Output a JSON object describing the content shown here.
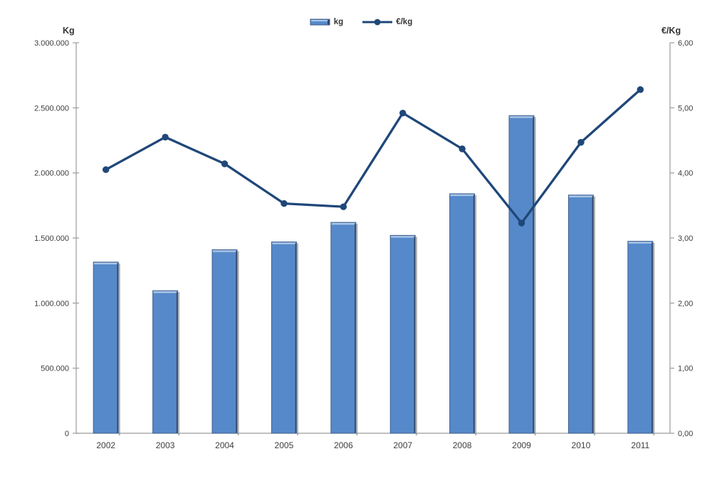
{
  "chart_data": {
    "type": "bar",
    "subtype": "combo-bar-line",
    "title": "",
    "categories": [
      "2002",
      "2003",
      "2004",
      "2005",
      "2006",
      "2007",
      "2008",
      "2009",
      "2010",
      "2011"
    ],
    "series": [
      {
        "name": "kg",
        "type": "bar",
        "axis": "left",
        "values": [
          1315000,
          1095000,
          1410000,
          1470000,
          1620000,
          1520000,
          1840000,
          2440000,
          1830000,
          1475000
        ]
      },
      {
        "name": "€/kg",
        "type": "line",
        "axis": "right",
        "values": [
          4.05,
          4.55,
          4.14,
          3.53,
          3.48,
          4.92,
          4.37,
          3.23,
          4.47,
          5.28
        ]
      }
    ],
    "left_axis": {
      "title": "Kg",
      "min": 0,
      "max": 3000000,
      "ticks": [
        {
          "v": 0,
          "label": "0"
        },
        {
          "v": 500000,
          "label": "500.000"
        },
        {
          "v": 1000000,
          "label": "1.000.000"
        },
        {
          "v": 1500000,
          "label": "1.500.000"
        },
        {
          "v": 2000000,
          "label": "2.000.000"
        },
        {
          "v": 2500000,
          "label": "2.500.000"
        },
        {
          "v": 3000000,
          "label": "3.000.000"
        }
      ]
    },
    "right_axis": {
      "title": "€/Kg",
      "min": 0,
      "max": 6,
      "ticks": [
        {
          "v": 0,
          "label": "0,00"
        },
        {
          "v": 1,
          "label": "1,00"
        },
        {
          "v": 2,
          "label": "2,00"
        },
        {
          "v": 3,
          "label": "3,00"
        },
        {
          "v": 4,
          "label": "4,00"
        },
        {
          "v": 5,
          "label": "5,00"
        },
        {
          "v": 6,
          "label": "6,00"
        }
      ]
    },
    "legend_position": "top-center",
    "grid": false,
    "colors": {
      "bar_fill": "#5689c9",
      "bar_top_highlight": "#acc7e8",
      "bar_border": "#41618f",
      "bar_edge_dark": "#2f4566",
      "bar_shadow": "#8f8f8f",
      "line": "#1f4779",
      "axis": "#9b9b9b",
      "tick_text": "#3d3d3d",
      "category_text": "#333333"
    }
  }
}
